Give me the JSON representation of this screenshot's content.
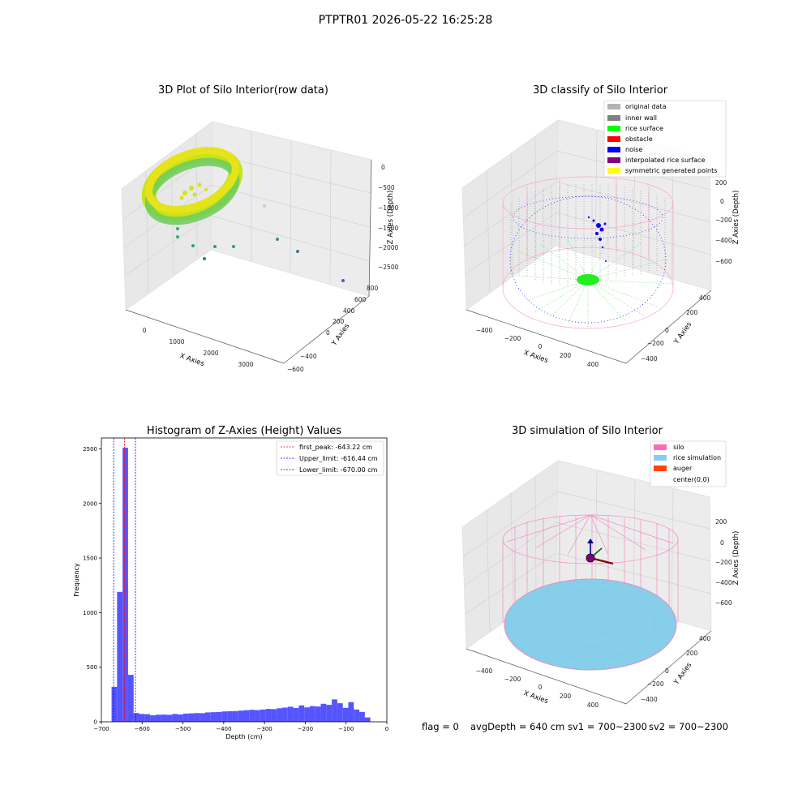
{
  "suptitle": "PTPTR01 2026-05-22 16:25:28",
  "panels": {
    "raw": {
      "title": "3D Plot of Silo Interior(row data)",
      "xlabel": "X Axies",
      "ylabel": "Y Axies",
      "zlabel": "Z Axies (Depth)",
      "xticks": [
        "0",
        "1000",
        "2000",
        "3000"
      ],
      "yticks": [
        "800",
        "600",
        "400",
        "200",
        "0",
        "−200",
        "−400",
        "−600"
      ],
      "zticks": [
        "0",
        "−500",
        "−1000",
        "−1500",
        "−2000",
        "−2500"
      ]
    },
    "classify": {
      "title": "3D classify of Silo Interior",
      "xlabel": "X Axies",
      "ylabel": "Y Axies",
      "zlabel": "Z Axies (Depth)",
      "xticks": [
        "−400",
        "−200",
        "0",
        "200",
        "400"
      ],
      "yticks": [
        "400",
        "200",
        "0",
        "−200",
        "−400"
      ],
      "zticks": [
        "200",
        "0",
        "−200",
        "−400",
        "−600"
      ],
      "legend": [
        {
          "label": "original data",
          "color": "#b3b3b3"
        },
        {
          "label": "inner wall",
          "color": "#808080"
        },
        {
          "label": "rice surface",
          "color": "#00ff00"
        },
        {
          "label": "obstacle",
          "color": "#ff0000"
        },
        {
          "label": "noise",
          "color": "#0000ff"
        },
        {
          "label": "interpolated rice surface",
          "color": "#800080"
        },
        {
          "label": "symmetric generated points",
          "color": "#ffff00"
        }
      ]
    },
    "simulation": {
      "title": "3D simulation of Silo Interior",
      "xlabel": "X Axies",
      "ylabel": "Y Axies",
      "zlabel": "Z Axies (Depth)",
      "xticks": [
        "−400",
        "−200",
        "0",
        "200",
        "400"
      ],
      "yticks": [
        "400",
        "200",
        "0",
        "−200",
        "−400"
      ],
      "zticks": [
        "200",
        "0",
        "−200",
        "−400",
        "−600"
      ],
      "legend": [
        {
          "label": "silo",
          "color": "#ff69b4"
        },
        {
          "label": "rice simulation",
          "color": "#87ceeb"
        },
        {
          "label": "auger",
          "color": "#ff4500"
        },
        {
          "label": "center(0,0)",
          "color": ""
        }
      ]
    }
  },
  "chart_data": {
    "type": "bar",
    "title": "Histogram of Z-Axies (Height) Values",
    "xlabel": "Depth (cm)",
    "ylabel": "Frequency",
    "xlim": [
      -700,
      0
    ],
    "ylim": [
      0,
      2600
    ],
    "xticks": [
      -700,
      -600,
      -500,
      -400,
      -300,
      -200,
      -100,
      0
    ],
    "yticks": [
      0,
      500,
      1000,
      1500,
      2000,
      2500
    ],
    "bar_color": "#4c4cff",
    "bin_width": 13.5,
    "bin_start": -675,
    "values": [
      320,
      1190,
      2510,
      430,
      80,
      72,
      70,
      60,
      65,
      66,
      64,
      72,
      67,
      75,
      77,
      80,
      79,
      86,
      88,
      90,
      95,
      97,
      98,
      102,
      106,
      110,
      107,
      112,
      118,
      116,
      124,
      130,
      138,
      126,
      150,
      132,
      144,
      140,
      165,
      155,
      205,
      170,
      128,
      180,
      112,
      90,
      40
    ],
    "vlines": [
      {
        "x": -643.22,
        "label": "first_peak: -643.22 cm",
        "color": "#ff0000"
      },
      {
        "x": -616.44,
        "label": "Upper_limit: -616.44 cm",
        "color": "#0000ff"
      },
      {
        "x": -670.0,
        "label": "Lower_limit: -670.00 cm",
        "color": "#0000ff"
      }
    ],
    "legend_position": "top-right"
  },
  "status": {
    "flag": "flag = 0",
    "avg_depth": "avgDepth = 640 cm",
    "sv1": "sv1 = 700~2300",
    "sv2": "sv2 = 700~2300"
  }
}
